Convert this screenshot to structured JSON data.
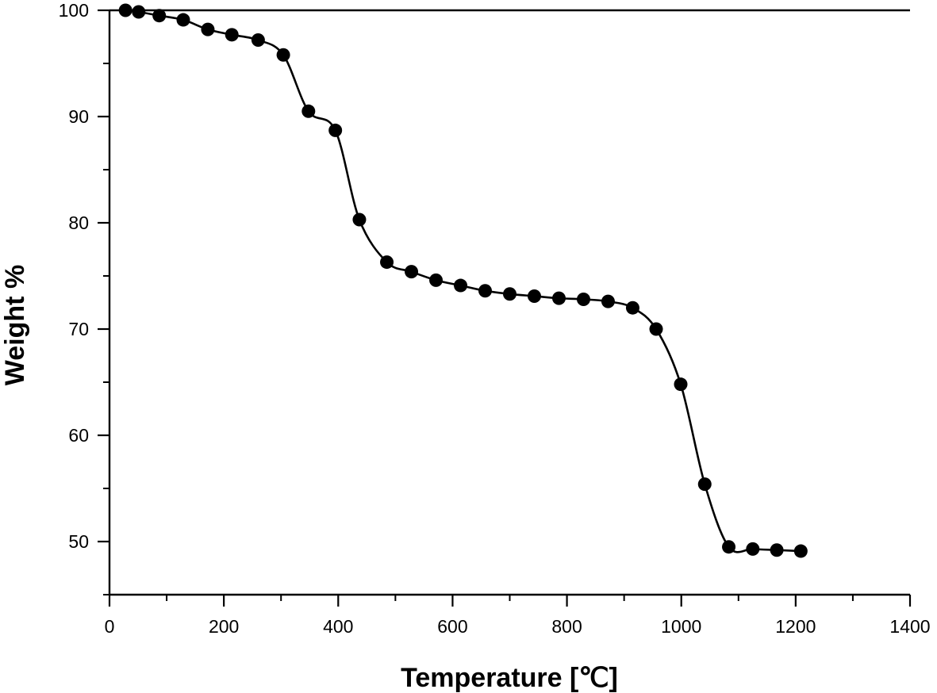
{
  "chart_data": {
    "type": "line",
    "title": "",
    "xlabel": "Temperature [℃]",
    "ylabel": "Weight %",
    "xlim": [
      0,
      1400
    ],
    "ylim": [
      45,
      100
    ],
    "xticks": [
      0,
      200,
      400,
      600,
      800,
      1000,
      1200,
      1400
    ],
    "yticks": [
      50,
      60,
      70,
      80,
      90,
      100
    ],
    "grid": false,
    "legend": "none",
    "series": [
      {
        "name": "Weight %",
        "marker": "filled-circle",
        "color": "#000000",
        "x": [
          28,
          51,
          87,
          129,
          172,
          214,
          260,
          304,
          348,
          395,
          437,
          485,
          528,
          571,
          614,
          657,
          700,
          743,
          786,
          829,
          872,
          915,
          956,
          999,
          1041,
          1083,
          1125,
          1167,
          1209
        ],
        "y": [
          100.0,
          99.85,
          99.5,
          99.1,
          98.2,
          97.7,
          97.2,
          95.8,
          90.5,
          88.7,
          80.3,
          76.3,
          75.4,
          74.6,
          74.1,
          73.6,
          73.3,
          73.1,
          72.9,
          72.8,
          72.6,
          72.0,
          70.0,
          64.8,
          55.4,
          49.5,
          49.3,
          49.2,
          49.1
        ]
      }
    ]
  }
}
